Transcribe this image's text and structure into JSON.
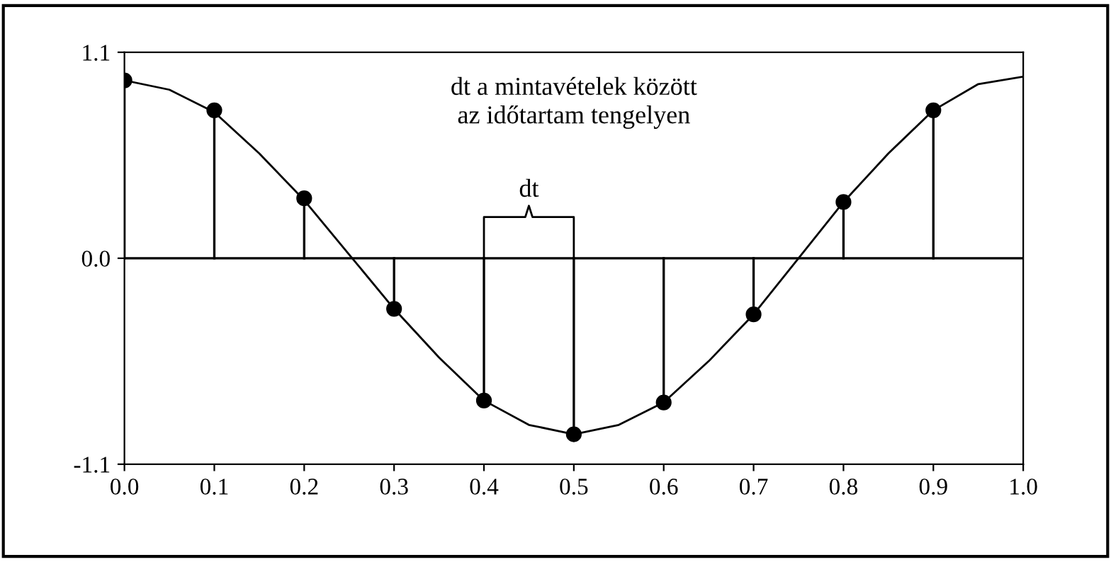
{
  "chart_data": {
    "type": "lollipop",
    "series": [
      {
        "type": "line",
        "color": "#000000",
        "marker": "none",
        "x": [
          0,
          0.05,
          0.1,
          0.15,
          0.2,
          0.25,
          0.3,
          0.35,
          0.4,
          0.45,
          0.5,
          0.55,
          0.6,
          0.65,
          0.7,
          0.75,
          0.8,
          0.85,
          0.9,
          0.95,
          1.0
        ],
        "values": [
          0.95,
          0.9,
          0.78,
          0.56,
          0.31,
          0.02,
          -0.27,
          -0.53,
          -0.76,
          -0.89,
          -0.94,
          -0.89,
          -0.77,
          -0.55,
          -0.3,
          0.0,
          0.3,
          0.56,
          0.79,
          0.93,
          0.97
        ]
      },
      {
        "color": "#000000",
        "marker": "circle",
        "x": [
          0,
          0.1,
          0.2,
          0.3,
          0.4,
          0.5,
          0.6,
          0.7,
          0.8,
          0.9
        ],
        "values": [
          0.95,
          0.79,
          0.32,
          -0.27,
          -0.76,
          -0.94,
          -0.77,
          -0.3,
          0.3,
          0.79
        ]
      }
    ],
    "xlim": [
      0,
      1.0
    ],
    "xticks": [
      {
        "value": 0,
        "label": "0.0"
      },
      0.1,
      0.2,
      0.3,
      0.4,
      0.5,
      0.6,
      0.7,
      0.8,
      0.9,
      {
        "value": 1.0,
        "label": "1.0"
      }
    ],
    "ylim": [
      -1.1,
      1.1
    ],
    "yticks": [
      {
        "value": -1.1,
        "label": "-1.1"
      },
      {
        "value": 0,
        "label": "0.0"
      },
      1.1
    ],
    "ref_lines": [
      {
        "axis": "y",
        "value": 0,
        "color": "#000000"
      }
    ],
    "annotations": [
      "dt a mintavételek között\naz időtartam tengelyen",
      "dt"
    ],
    "grid": false,
    "legend": false
  }
}
